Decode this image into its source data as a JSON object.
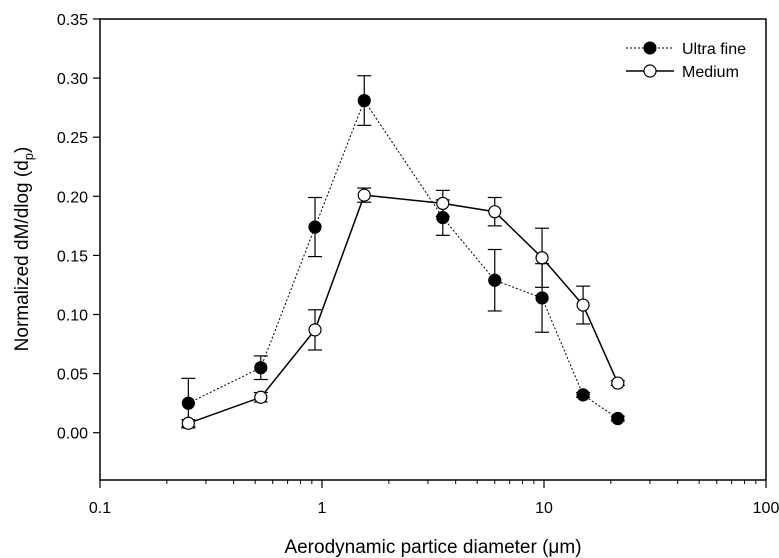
{
  "chart_data": {
    "type": "scatter",
    "xscale": "log",
    "xlim": [
      0.1,
      100
    ],
    "ylim": [
      -0.04,
      0.35
    ],
    "xlabel": "Aerodynamic partice diameter (μm)",
    "ylabel_main": "Normalized dM/dlog (d",
    "ylabel_sub": "p",
    "ylabel_close": ")",
    "x_ticks": [
      0.1,
      1,
      10,
      100
    ],
    "x_tick_labels": [
      "0.1",
      "1",
      "10",
      "100"
    ],
    "y_ticks": [
      0.0,
      0.05,
      0.1,
      0.15,
      0.2,
      0.25,
      0.3,
      0.35
    ],
    "y_tick_labels": [
      "0.00",
      "0.05",
      "0.10",
      "0.15",
      "0.20",
      "0.25",
      "0.30",
      "0.35"
    ],
    "grid": false,
    "legend_position": "top-right",
    "series": [
      {
        "name": "Ultra fine",
        "marker": "filled-circle",
        "line_style": "dotted",
        "color": "#000000",
        "x": [
          0.25,
          0.53,
          0.93,
          1.55,
          3.5,
          6.0,
          9.8,
          15.0,
          21.5
        ],
        "y": [
          0.025,
          0.055,
          0.174,
          0.281,
          0.182,
          0.129,
          0.114,
          0.032,
          0.012
        ],
        "err": [
          0.021,
          0.01,
          0.025,
          0.021,
          0.015,
          0.026,
          0.029,
          0.002,
          0.002
        ]
      },
      {
        "name": "Medium",
        "marker": "open-circle",
        "line_style": "solid",
        "color": "#000000",
        "x": [
          0.25,
          0.53,
          0.93,
          1.55,
          3.5,
          6.0,
          9.8,
          15.0,
          21.5
        ],
        "y": [
          0.008,
          0.03,
          0.087,
          0.201,
          0.194,
          0.187,
          0.148,
          0.108,
          0.042
        ],
        "err": [
          0.003,
          0.004,
          0.017,
          0.006,
          0.011,
          0.012,
          0.025,
          0.016,
          0.002
        ]
      }
    ]
  }
}
